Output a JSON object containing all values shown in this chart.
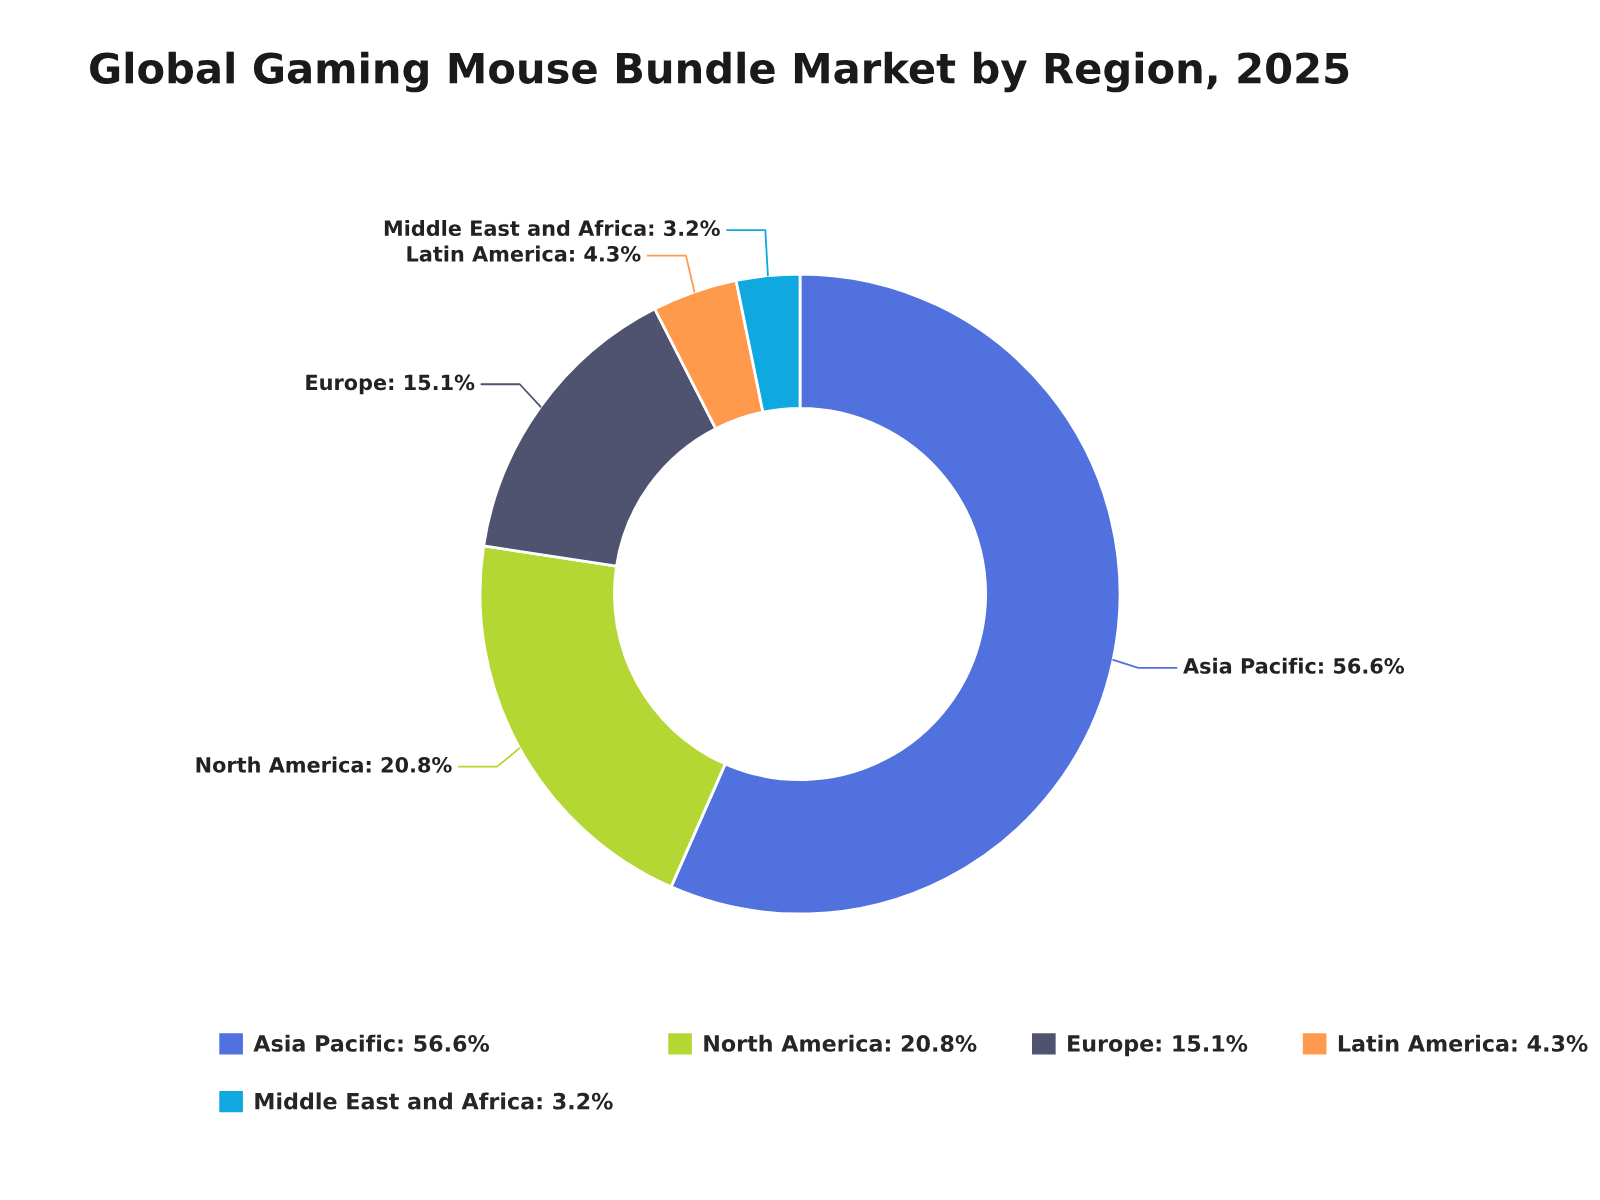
{
  "chart_data": {
    "type": "donut",
    "title": "Global Gaming Mouse Bundle Market by Region, 2025",
    "categories": [
      "Asia Pacific",
      "North America",
      "Europe",
      "Latin America",
      "Middle East and Africa"
    ],
    "values": [
      56.6,
      20.8,
      15.1,
      4.3,
      3.2
    ],
    "colors": [
      "#5171de",
      "#b5d733",
      "#505370",
      "#ff9a4d",
      "#10a8e0"
    ],
    "value_labels": [
      "56.6%",
      "20.8%",
      "15.1%",
      "4.3%",
      "3.2%"
    ],
    "legend": "bottom"
  }
}
